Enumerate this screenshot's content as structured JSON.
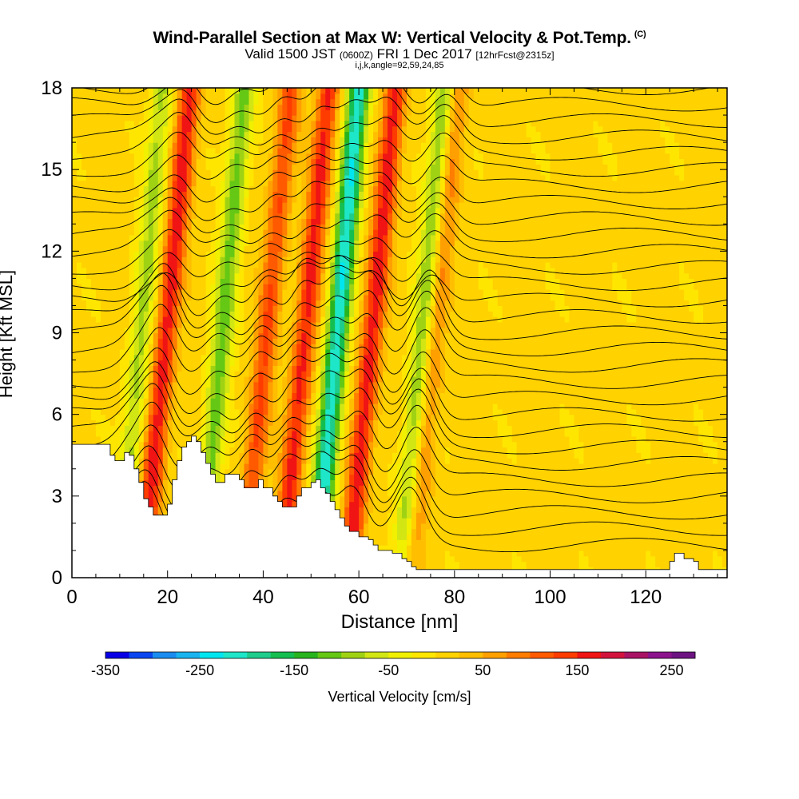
{
  "title": "Wind-Parallel Section at Max W: Vertical Velocity & Pot.Temp.",
  "copyright": "(C)",
  "subtitle_main": "Valid 1500 JST",
  "subtitle_utc": "(0600Z)",
  "subtitle_date": "FRI 1 Dec 2017",
  "subtitle_fcst": "[12hrFcst@2315z]",
  "subtitle_indices": "i,j,k,angle=92,59,24,85",
  "chart_data": {
    "type": "heatmap",
    "xlabel": "Distance [nm]",
    "ylabel": "Height [Kft MSL]",
    "xlim": [
      0,
      137
    ],
    "ylim": [
      0,
      18
    ],
    "x_ticks": [
      0,
      20,
      40,
      60,
      80,
      100,
      120
    ],
    "y_ticks": [
      0,
      3,
      6,
      9,
      12,
      15,
      18
    ],
    "colorbar": {
      "label": "Vertical Velocity [cm/s]",
      "range": [
        -350,
        275
      ],
      "tick_values": [
        -350,
        -250,
        -150,
        -50,
        50,
        150,
        250
      ],
      "colors": [
        "#0a00e6",
        "#0a46f0",
        "#1a8cf0",
        "#19b4f0",
        "#00e6f0",
        "#1ee6c8",
        "#1ecc8c",
        "#14be50",
        "#28b41e",
        "#64c814",
        "#a0d214",
        "#d2e614",
        "#f0f000",
        "#ffe600",
        "#ffd200",
        "#ffbe00",
        "#ffa000",
        "#ff7d00",
        "#ff5a00",
        "#ff3c00",
        "#f01414",
        "#d2143c",
        "#aa1464",
        "#8c148c",
        "#6e1482"
      ]
    },
    "updrafts_cm_s": [
      {
        "x": 17,
        "w": 160
      },
      {
        "x": 38,
        "w": 120
      },
      {
        "x": 46,
        "w": 150
      },
      {
        "x": 60,
        "w": 160
      },
      {
        "x": 73,
        "w": 90
      }
    ],
    "downdrafts_cm_s": [
      {
        "x": 12,
        "w": -90
      },
      {
        "x": 29,
        "w": -120
      },
      {
        "x": 53,
        "w": -230
      },
      {
        "x": 71,
        "w": -120
      }
    ],
    "terrain_kft": [
      [
        0,
        4.9
      ],
      [
        7,
        4.9
      ],
      [
        8,
        4.5
      ],
      [
        9,
        4.3
      ],
      [
        10,
        4.3
      ],
      [
        11,
        4.6
      ],
      [
        12,
        4.5
      ],
      [
        13,
        4.0
      ],
      [
        14,
        3.5
      ],
      [
        15,
        2.9
      ],
      [
        16,
        2.6
      ],
      [
        17,
        2.3
      ],
      [
        19,
        2.3
      ],
      [
        20,
        2.7
      ],
      [
        21,
        3.6
      ],
      [
        22,
        4.3
      ],
      [
        23,
        4.8
      ],
      [
        24,
        5.0
      ],
      [
        25,
        5.2
      ],
      [
        26,
        5.0
      ],
      [
        27,
        4.6
      ],
      [
        28,
        4.2
      ],
      [
        29,
        3.8
      ],
      [
        30,
        3.5
      ],
      [
        31,
        3.5
      ],
      [
        32,
        3.8
      ],
      [
        34,
        3.8
      ],
      [
        35,
        3.6
      ],
      [
        36,
        3.3
      ],
      [
        38,
        3.3
      ],
      [
        39,
        3.6
      ],
      [
        40,
        3.3
      ],
      [
        42,
        3.0
      ],
      [
        43,
        2.8
      ],
      [
        44,
        2.6
      ],
      [
        46,
        2.6
      ],
      [
        47,
        3.0
      ],
      [
        48,
        3.3
      ],
      [
        50,
        3.5
      ],
      [
        51,
        3.6
      ],
      [
        52,
        3.3
      ],
      [
        53,
        3.1
      ],
      [
        54,
        2.8
      ],
      [
        55,
        2.5
      ],
      [
        56,
        2.2
      ],
      [
        57,
        1.9
      ],
      [
        58,
        1.7
      ],
      [
        60,
        1.5
      ],
      [
        62,
        1.4
      ],
      [
        63,
        1.2
      ],
      [
        64,
        1.0
      ],
      [
        67,
        0.9
      ],
      [
        69,
        0.7
      ],
      [
        70,
        0.6
      ],
      [
        71,
        0.4
      ],
      [
        72,
        0.3
      ],
      [
        124,
        0.3
      ],
      [
        125,
        0.6
      ],
      [
        126,
        0.9
      ],
      [
        127,
        0.9
      ],
      [
        128,
        0.7
      ],
      [
        130,
        0.6
      ],
      [
        131,
        0.3
      ],
      [
        137,
        0.3
      ]
    ],
    "theta_contour_levels_K": [
      282,
      283,
      284,
      285,
      286,
      287,
      288,
      289,
      290,
      291,
      292,
      293,
      294,
      295,
      296,
      297,
      298,
      299,
      300,
      301,
      302,
      303,
      304,
      305,
      306,
      307,
      308,
      309,
      310
    ]
  }
}
